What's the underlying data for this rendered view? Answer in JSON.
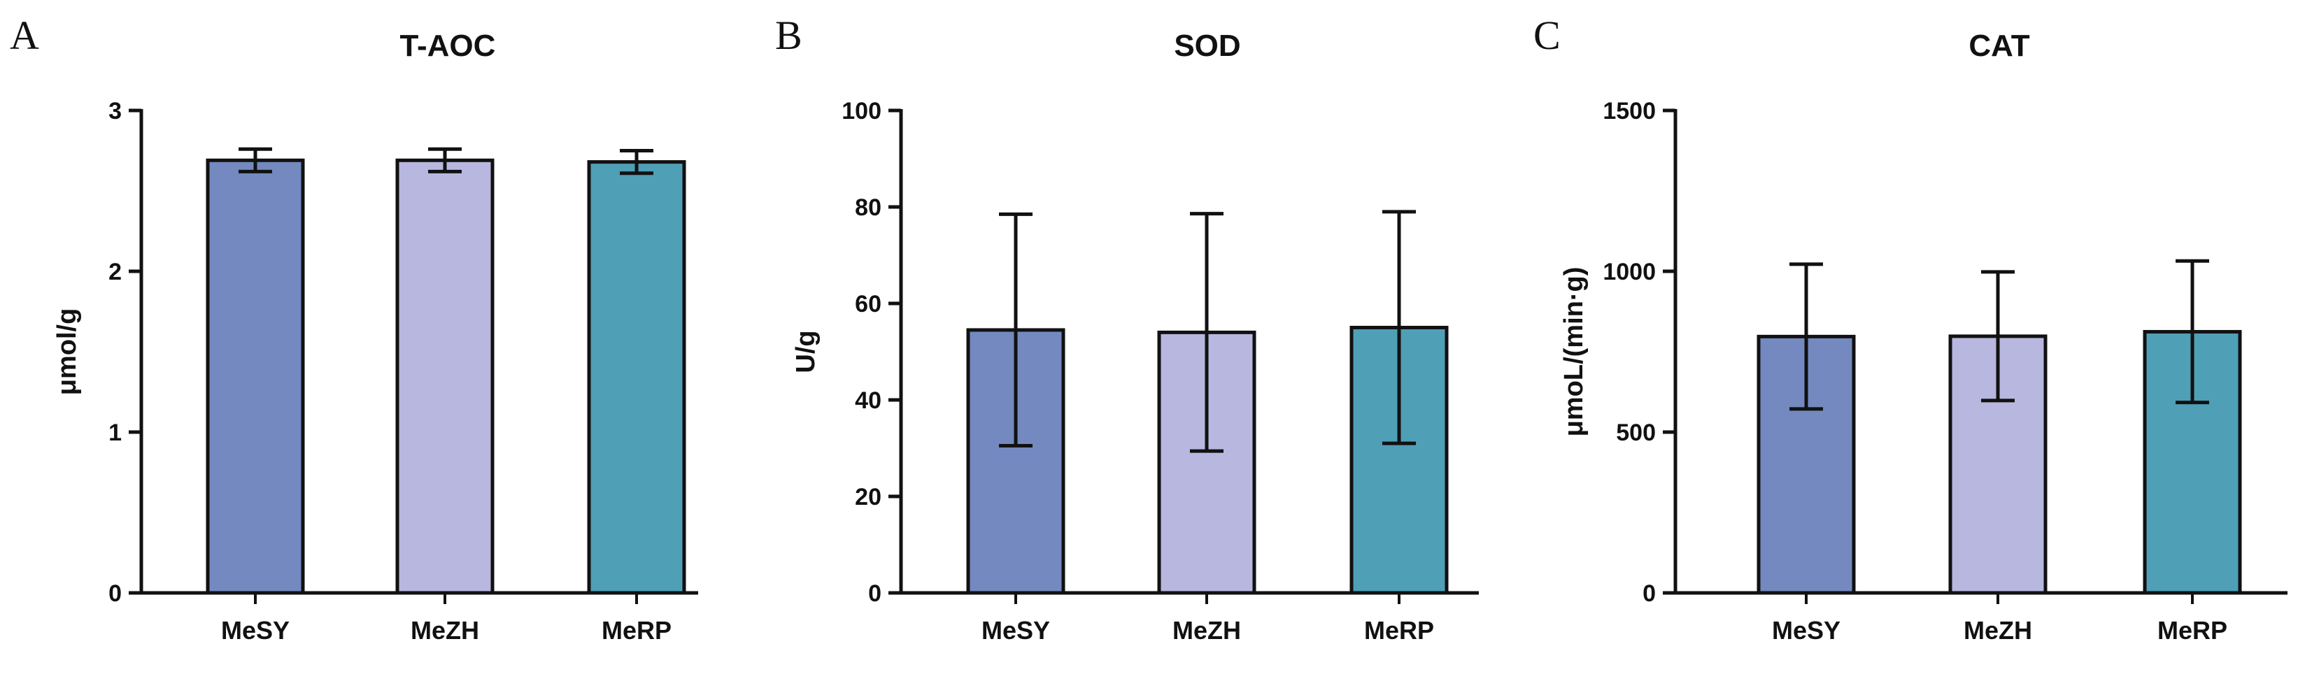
{
  "chart_data": [
    {
      "panel": "A",
      "type": "bar",
      "title": "T-AOC",
      "xlabel": "",
      "ylabel": "μmol/g",
      "categories": [
        "MeSY",
        "MeZH",
        "MeRP"
      ],
      "values": [
        2.69,
        2.69,
        2.68
      ],
      "errors": [
        0.07,
        0.07,
        0.07
      ],
      "ylim": [
        0,
        3
      ],
      "yticks": [
        0,
        1,
        2,
        3
      ],
      "colors": [
        "#7389bf",
        "#b7b7e0",
        "#4f9fb6"
      ],
      "grid": false
    },
    {
      "panel": "B",
      "type": "bar",
      "title": "SOD",
      "xlabel": "",
      "ylabel": "U/g",
      "categories": [
        "MeSY",
        "MeZH",
        "MeRP"
      ],
      "values": [
        54.5,
        54.0,
        55.0
      ],
      "errors": [
        24.0,
        24.6,
        24.0
      ],
      "ylim": [
        0,
        100
      ],
      "yticks": [
        0,
        20,
        40,
        60,
        80,
        100
      ],
      "colors": [
        "#7389bf",
        "#b7b7e0",
        "#4f9fb6"
      ],
      "grid": false
    },
    {
      "panel": "C",
      "type": "bar",
      "title": "CAT",
      "xlabel": "",
      "ylabel": "μmoL/(min·g)",
      "categories": [
        "MeSY",
        "MeZH",
        "MeRP"
      ],
      "values": [
        797,
        798,
        812
      ],
      "errors": [
        225,
        200,
        220
      ],
      "ylim": [
        0,
        1500
      ],
      "yticks": [
        0,
        500,
        1000,
        1500
      ],
      "colors": [
        "#7389bf",
        "#b7b7e0",
        "#4f9fb6"
      ],
      "grid": false
    }
  ]
}
